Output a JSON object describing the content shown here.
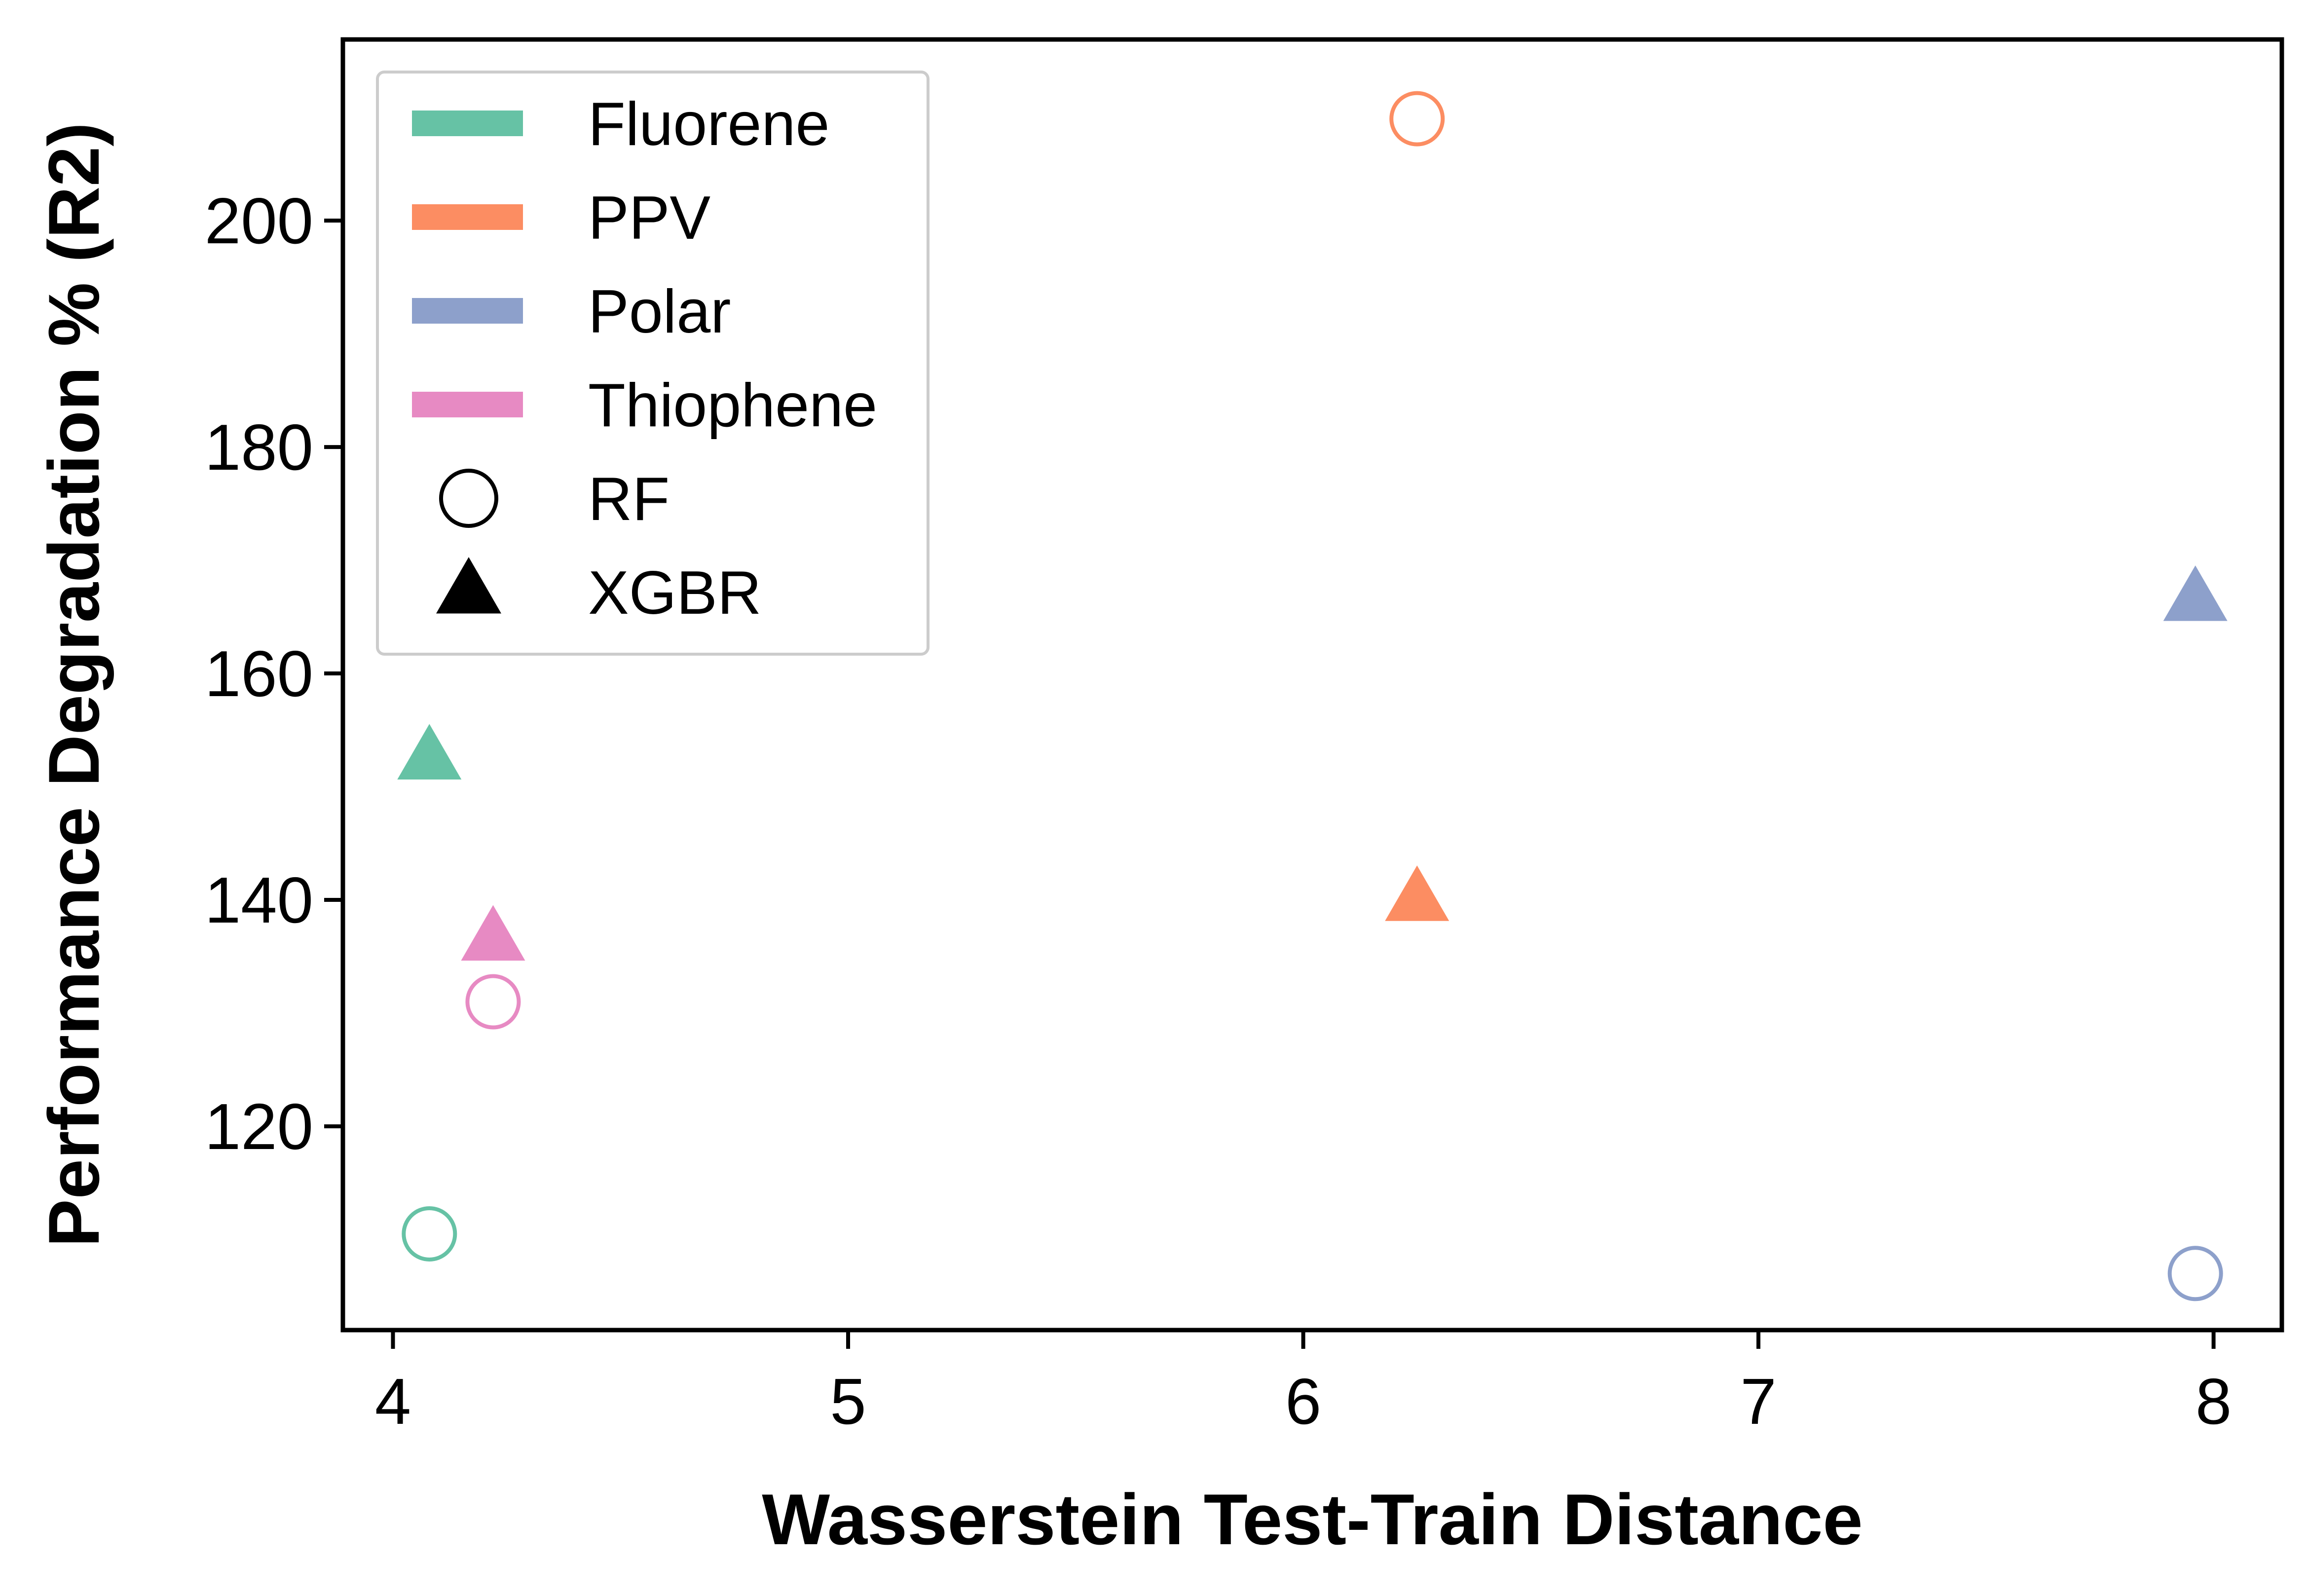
{
  "chart_data": {
    "type": "scatter",
    "title": "",
    "xlabel": "Wasserstein Test-Train Distance",
    "ylabel": "Performance Degradation % (R2)",
    "xlim": [
      3.89,
      8.15
    ],
    "ylim": [
      102,
      216
    ],
    "xticks": [
      4,
      5,
      6,
      7,
      8
    ],
    "yticks": [
      120,
      140,
      160,
      180,
      200
    ],
    "grid": false,
    "legend_position": "top-left",
    "series": [
      {
        "name": "Fluorene",
        "color": "#66c2a5",
        "points": [
          {
            "x": 4.08,
            "y": 110.5,
            "model": "RF"
          },
          {
            "x": 4.08,
            "y": 152.5,
            "model": "XGBR"
          }
        ]
      },
      {
        "name": "PPV",
        "color": "#fc8d62",
        "points": [
          {
            "x": 6.25,
            "y": 209,
            "model": "RF"
          },
          {
            "x": 6.25,
            "y": 140,
            "model": "XGBR"
          }
        ]
      },
      {
        "name": "Polar",
        "color": "#8da0cb",
        "points": [
          {
            "x": 7.96,
            "y": 107,
            "model": "RF"
          },
          {
            "x": 7.96,
            "y": 166.5,
            "model": "XGBR"
          }
        ]
      },
      {
        "name": "Thiophene",
        "color": "#e78ac3",
        "points": [
          {
            "x": 4.22,
            "y": 131,
            "model": "RF"
          },
          {
            "x": 4.22,
            "y": 136.5,
            "model": "XGBR"
          }
        ]
      }
    ],
    "markers": [
      {
        "name": "RF",
        "shape": "circle-open"
      },
      {
        "name": "XGBR",
        "shape": "triangle-filled"
      }
    ]
  }
}
